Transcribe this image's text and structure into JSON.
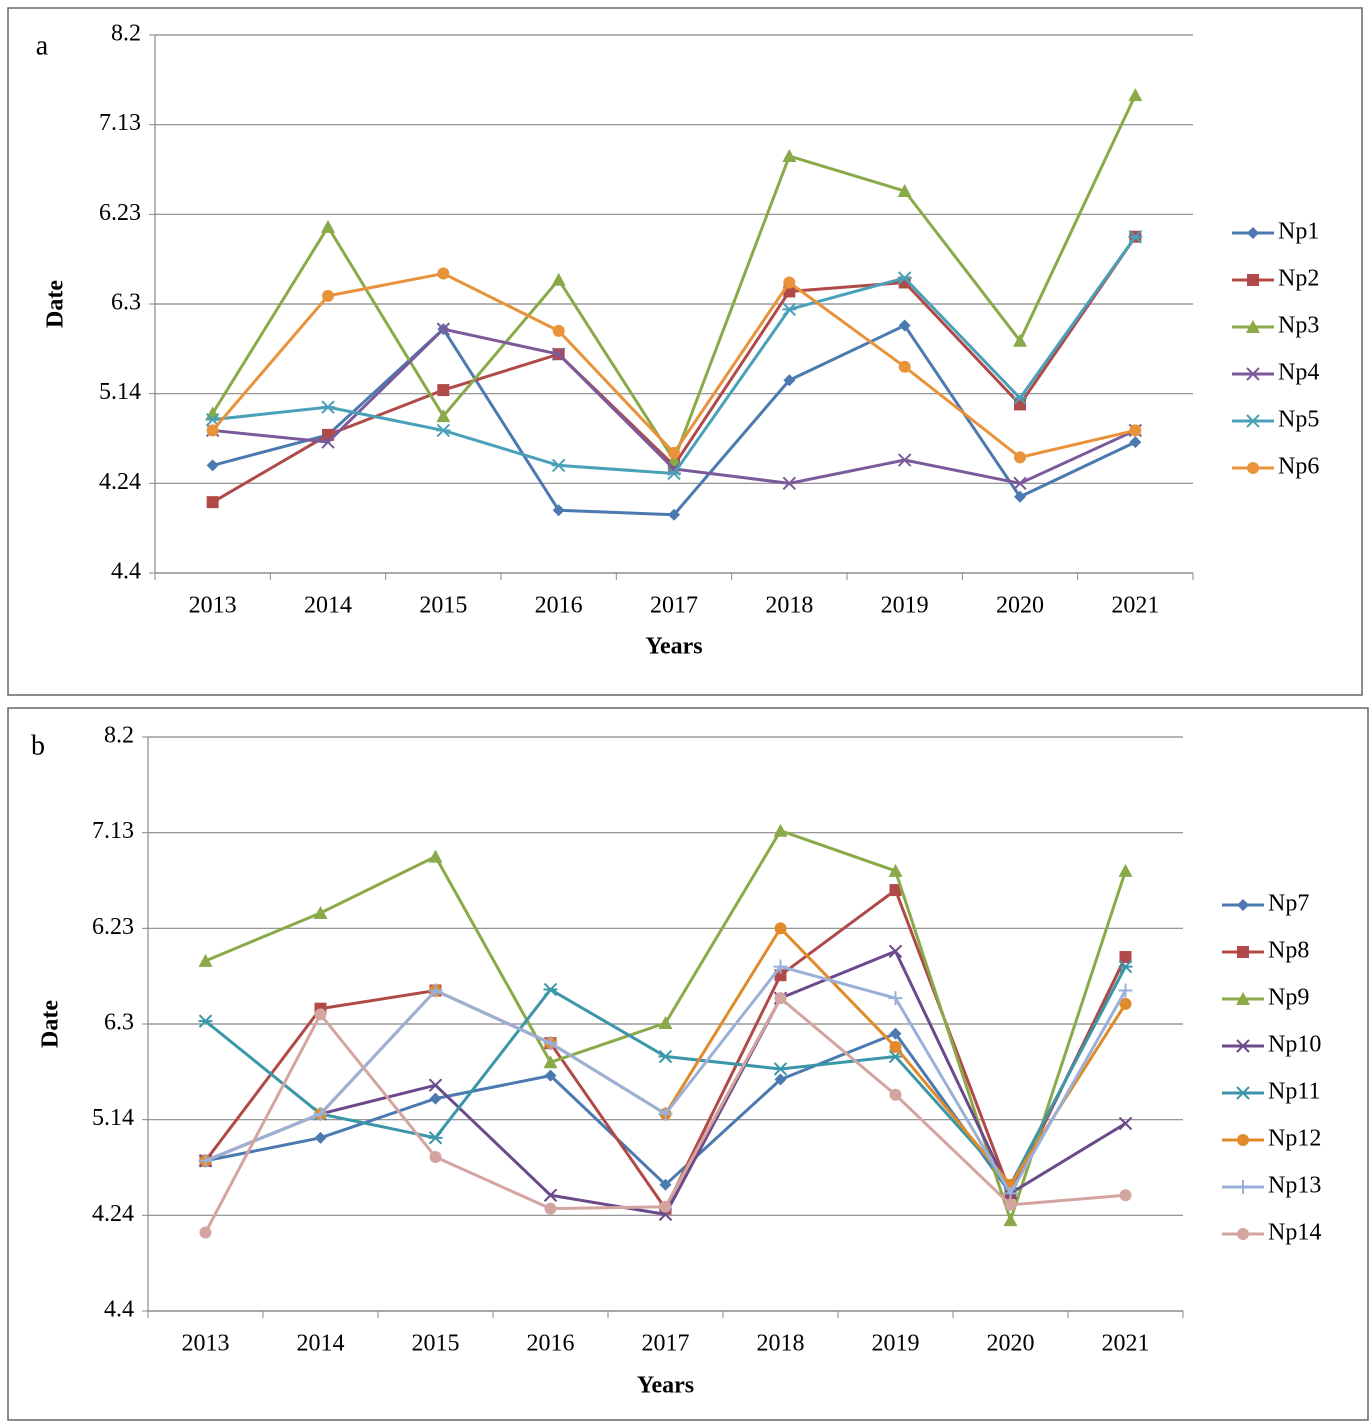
{
  "chart_data": [
    {
      "type": "line",
      "panel_label": "a",
      "x_label": "Years",
      "y_label": "Date",
      "categories": [
        "2013",
        "2014",
        "2015",
        "2016",
        "2017",
        "2018",
        "2019",
        "2020",
        "2021"
      ],
      "ylim": [
        0,
        6
      ],
      "yticks": [
        {
          "value": 0,
          "label": "4.4"
        },
        {
          "value": 1,
          "label": "4.24"
        },
        {
          "value": 2,
          "label": "5.14"
        },
        {
          "value": 3,
          "label": "6.3"
        },
        {
          "value": 4,
          "label": "6.23"
        },
        {
          "value": 5,
          "label": "7.13"
        },
        {
          "value": 6,
          "label": "8.2"
        }
      ],
      "grid": true,
      "series": [
        {
          "name": "Np1",
          "color": "#4a7ab0",
          "marker": "diamond",
          "values": [
            1.2,
            1.54,
            2.72,
            0.7,
            0.65,
            2.15,
            2.76,
            0.85,
            1.46
          ]
        },
        {
          "name": "Np2",
          "color": "#b04a48",
          "marker": "square",
          "values": [
            0.79,
            1.54,
            2.04,
            2.44,
            1.2,
            3.14,
            3.24,
            1.88,
            3.75
          ]
        },
        {
          "name": "Np3",
          "color": "#8aaa4a",
          "marker": "triangle",
          "values": [
            1.78,
            3.86,
            1.75,
            3.27,
            1.26,
            4.65,
            4.26,
            2.59,
            5.33
          ]
        },
        {
          "name": "Np4",
          "color": "#7a5a9a",
          "marker": "x",
          "values": [
            1.59,
            1.46,
            2.72,
            2.44,
            1.16,
            1.0,
            1.26,
            1.0,
            1.59
          ]
        },
        {
          "name": "Np5",
          "color": "#4aa0b8",
          "marker": "asterisk",
          "values": [
            1.71,
            1.85,
            1.59,
            1.2,
            1.11,
            2.94,
            3.29,
            1.95,
            3.75
          ]
        },
        {
          "name": "Np6",
          "color": "#e8923a",
          "marker": "circle",
          "values": [
            1.59,
            3.09,
            3.34,
            2.7,
            1.34,
            3.24,
            2.3,
            1.29,
            1.59
          ]
        }
      ]
    },
    {
      "type": "line",
      "panel_label": "b",
      "x_label": "Years",
      "y_label": "Date",
      "categories": [
        "2013",
        "2014",
        "2015",
        "2016",
        "2017",
        "2018",
        "2019",
        "2020",
        "2021"
      ],
      "ylim": [
        0,
        6
      ],
      "yticks": [
        {
          "value": 0,
          "label": "4.4"
        },
        {
          "value": 1,
          "label": "4.24"
        },
        {
          "value": 2,
          "label": "5.14"
        },
        {
          "value": 3,
          "label": "6.3"
        },
        {
          "value": 4,
          "label": "6.23"
        },
        {
          "value": 5,
          "label": "7.13"
        },
        {
          "value": 6,
          "label": "8.2"
        }
      ],
      "grid": true,
      "series": [
        {
          "name": "Np7",
          "color": "#4a7ab0",
          "marker": "diamond",
          "values": [
            1.57,
            1.81,
            2.22,
            2.46,
            1.32,
            2.42,
            2.9,
            1.23,
            3.7
          ]
        },
        {
          "name": "Np8",
          "color": "#b04a48",
          "marker": "square",
          "values": [
            1.57,
            3.16,
            3.35,
            2.8,
            1.07,
            3.51,
            4.4,
            1.23,
            3.7
          ]
        },
        {
          "name": "Np9",
          "color": "#8aaa4a",
          "marker": "triangle",
          "values": [
            3.66,
            4.16,
            4.75,
            2.6,
            3.01,
            5.02,
            4.6,
            0.95,
            4.6
          ]
        },
        {
          "name": "Np10",
          "color": "#6a4a8a",
          "marker": "x",
          "values": [
            1.57,
            2.06,
            2.36,
            1.21,
            1.01,
            3.27,
            3.76,
            1.23,
            1.96
          ]
        },
        {
          "name": "Np11",
          "color": "#3a96a8",
          "marker": "asterisk",
          "values": [
            3.03,
            2.06,
            1.81,
            3.36,
            2.66,
            2.53,
            2.66,
            1.32,
            3.6
          ]
        },
        {
          "name": "Np12",
          "color": "#e08a2a",
          "marker": "circle",
          "values": [
            1.57,
            2.06,
            3.35,
            2.8,
            2.06,
            4.0,
            2.76,
            1.32,
            3.21
          ]
        },
        {
          "name": "Np13",
          "color": "#9ab0d8",
          "marker": "plus",
          "values": [
            1.57,
            2.06,
            3.35,
            2.8,
            2.06,
            3.6,
            3.27,
            1.23,
            3.35
          ]
        },
        {
          "name": "Np14",
          "color": "#d4a5a0",
          "marker": "circle",
          "values": [
            0.82,
            3.1,
            1.61,
            1.07,
            1.09,
            3.27,
            2.26,
            1.11,
            1.21
          ]
        }
      ]
    }
  ]
}
